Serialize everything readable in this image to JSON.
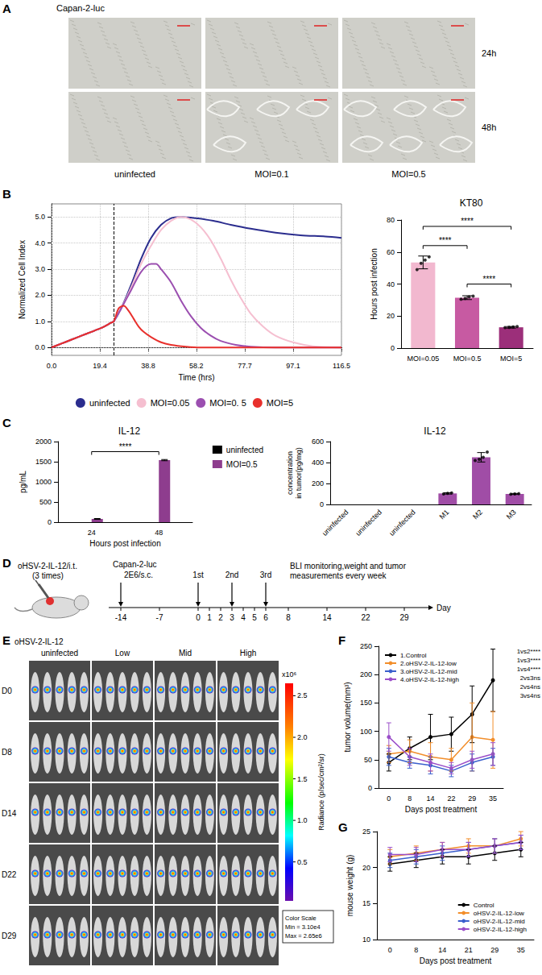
{
  "panel_letters": [
    "A",
    "B",
    "C",
    "D",
    "E",
    "F",
    "G"
  ],
  "microscopy": {
    "title": "Capan-2-luc",
    "rows": [
      "24h",
      "48h"
    ],
    "columns": [
      "uninfected",
      "MOI=0.1",
      "MOI=0.5"
    ]
  },
  "schematic": {
    "injection_label": "oHSV-2-IL-12/i.t.",
    "injection_note": "(3 times)",
    "cells": "Capan-2-luc",
    "cells_dose": "2E6/s.c.",
    "cells_day": -14,
    "doses": [
      {
        "day": 0,
        "label": "1st"
      },
      {
        "day": 3,
        "label": "2nd"
      },
      {
        "day": 6,
        "label": "3rd"
      }
    ],
    "monitoring": "BLI monitoring,weight and tumor measurements every week",
    "axis_label": "Day",
    "days": [
      -14,
      -7,
      0,
      1,
      2,
      3,
      4,
      5,
      6,
      8,
      14,
      22,
      29
    ]
  },
  "bli": {
    "group_label": "oHSV-2-IL-12",
    "columns": [
      "uninfected",
      "Low",
      "Mid",
      "High"
    ],
    "rows": [
      "D0",
      "D8",
      "D14",
      "D22",
      "D29"
    ],
    "colorbar": {
      "title": "Radiance (p/sec/cm²/sr)",
      "unit": "x10⁶",
      "range": [
        0.031,
        2.65
      ],
      "ticks": [
        0.5,
        {
          "value": 1,
          "label": "1.0"
        },
        1.5,
        {
          "value": 2,
          "label": "2.0"
        },
        2.5
      ]
    },
    "scale_box": [
      "Color Scale",
      "Min = 3.10e4",
      "Max = 2.65e6"
    ]
  },
  "chart_data": [
    {
      "type": "line",
      "x_label": "Time (hrs)",
      "y_label": "Normalized Cell Index",
      "xlim": [
        0,
        116.5
      ],
      "xticks": [
        {
          "value": 0,
          "label": "0.0"
        },
        19.4,
        38.8,
        58.2,
        77.7,
        97.1,
        116.5
      ],
      "ylim": [
        -0.3,
        5.5
      ],
      "yticks": [
        {
          "value": 0,
          "label": "0.0"
        },
        {
          "value": 1,
          "label": "1.0"
        },
        {
          "value": 2,
          "label": "2.0"
        },
        {
          "value": 3,
          "label": "3.0"
        },
        {
          "value": 4,
          "label": "4.0"
        },
        {
          "value": 5,
          "label": "5.0"
        }
      ],
      "grid": true,
      "legend": "bottom",
      "vline_x": 25,
      "series": [
        {
          "name": "uninfected",
          "color": "#2b2d8e",
          "x": [
            0,
            4,
            8,
            12,
            16,
            20,
            24,
            25,
            28,
            32,
            36,
            40,
            44,
            48,
            52,
            58,
            65,
            72,
            80,
            90,
            100,
            110,
            116.5
          ],
          "values": [
            0.0,
            0.15,
            0.3,
            0.45,
            0.6,
            0.75,
            0.95,
            1.0,
            1.5,
            2.4,
            3.4,
            4.2,
            4.7,
            4.95,
            5.0,
            4.95,
            4.85,
            4.7,
            4.55,
            4.4,
            4.3,
            4.25,
            4.2
          ]
        },
        {
          "name": "MOI=0.05",
          "color": "#f5bfd0",
          "x": [
            0,
            4,
            8,
            12,
            16,
            20,
            24,
            25,
            28,
            32,
            36,
            40,
            44,
            48,
            52,
            56,
            60,
            64,
            68,
            72,
            76,
            80,
            85,
            90,
            97,
            105,
            116.5
          ],
          "values": [
            0.0,
            0.15,
            0.3,
            0.45,
            0.6,
            0.75,
            0.95,
            1.0,
            1.5,
            2.3,
            3.2,
            3.9,
            4.5,
            4.85,
            5.0,
            4.9,
            4.6,
            4.1,
            3.4,
            2.6,
            1.9,
            1.3,
            0.8,
            0.45,
            0.2,
            0.05,
            0.0
          ]
        },
        {
          "name": "MOI=0. 5",
          "color": "#9b4fb0",
          "x": [
            0,
            4,
            8,
            12,
            16,
            20,
            24,
            25,
            28,
            32,
            36,
            40,
            42,
            44,
            48,
            52,
            56,
            60,
            64,
            68,
            74,
            80,
            90,
            116.5
          ],
          "values": [
            0.0,
            0.15,
            0.3,
            0.45,
            0.6,
            0.75,
            0.95,
            1.0,
            1.5,
            2.2,
            2.9,
            3.2,
            3.2,
            3.0,
            2.5,
            1.8,
            1.2,
            0.75,
            0.45,
            0.25,
            0.1,
            0.03,
            0.0,
            0.0
          ]
        },
        {
          "name": "MOI=5",
          "color": "#e8302c",
          "x": [
            0,
            4,
            8,
            12,
            16,
            20,
            24,
            25,
            27,
            29,
            31,
            33,
            35,
            37,
            40,
            44,
            48,
            54,
            60,
            80,
            116.5
          ],
          "values": [
            0.0,
            0.15,
            0.3,
            0.45,
            0.6,
            0.75,
            0.95,
            1.0,
            1.5,
            1.6,
            1.4,
            1.1,
            0.8,
            0.6,
            0.4,
            0.2,
            0.1,
            0.03,
            0.0,
            0.0,
            0.0
          ]
        }
      ]
    },
    {
      "type": "bar",
      "title": "KT80",
      "y_label": "Hours post infection",
      "categories": [
        "MOI=0.05",
        "MOI=0.5",
        "MOI=5"
      ],
      "values": [
        53.5,
        31.5,
        13
      ],
      "errors": [
        4,
        1.2,
        0.5
      ],
      "points": [
        [
          49,
          53,
          55,
          57
        ],
        [
          30.5,
          31,
          32,
          32.5
        ],
        [
          12.8,
          13,
          13.2,
          13.5
        ]
      ],
      "colors": [
        "#f2b8cf",
        "#c75aa2",
        "#9c2f7a"
      ],
      "ylim": [
        0,
        80
      ],
      "yticks": [
        0,
        20,
        40,
        60,
        80
      ],
      "grid": false,
      "significance": [
        {
          "between": [
            0,
            2
          ],
          "y": 76,
          "label": "****"
        },
        {
          "between": [
            0,
            1
          ],
          "y": 64,
          "label": "****"
        },
        {
          "between": [
            1,
            2
          ],
          "y": 40,
          "label": "****"
        }
      ]
    },
    {
      "type": "bar",
      "title": "IL-12",
      "x_label": "Hours post infection",
      "y_label": "pg/mL",
      "categories": [
        24,
        48
      ],
      "series": [
        {
          "name": "uninfected",
          "color": "#000000",
          "values": [
            0,
            0
          ],
          "errors": [
            0,
            0
          ]
        },
        {
          "name": "MOI=0.5",
          "color": "#8e3d8e",
          "values": [
            80,
            1540
          ],
          "errors": [
            10,
            15
          ]
        }
      ],
      "ylim": [
        0,
        2000
      ],
      "yticks": [
        0,
        500,
        1000,
        1500,
        2000
      ],
      "grid": false,
      "legend": "right",
      "significance": [
        {
          "between": [
            0,
            1
          ],
          "y": 1750,
          "label": "****"
        }
      ]
    },
    {
      "type": "bar",
      "title": "IL-12",
      "y_label": "concentration in tumor(pg/mg)",
      "categories": [
        "uninfected",
        "uninfected",
        "uninfected",
        "M1",
        "M2",
        "M3"
      ],
      "values": [
        0,
        0,
        0,
        105,
        450,
        100
      ],
      "errors": [
        0,
        0,
        0,
        6,
        45,
        5
      ],
      "points": [
        [],
        [],
        [],
        [
          100,
          105,
          110
        ],
        [
          420,
          430,
          450,
          500
        ],
        [
          97,
          100,
          103
        ]
      ],
      "color": "#a04da6",
      "ylim": [
        0,
        600
      ],
      "yticks": [
        0,
        200,
        400,
        600
      ],
      "grid": false
    },
    {
      "type": "line",
      "x_label": "Days post treatment",
      "y_label": "tumor volume(mm³)",
      "categories": [
        0,
        8,
        14,
        22,
        29,
        35
      ],
      "ylim": [
        0,
        250
      ],
      "yticks": [
        0,
        50,
        100,
        150,
        200,
        250
      ],
      "grid": false,
      "legend": "top-left",
      "series": [
        {
          "name": "1.Control",
          "color": "#000000",
          "values": [
            45,
            70,
            90,
            95,
            130,
            190
          ],
          "errors": [
            15,
            20,
            40,
            30,
            50,
            55
          ]
        },
        {
          "name": "2.oHSV-2-IL-12-low",
          "color": "#f28e2b",
          "values": [
            60,
            65,
            55,
            50,
            90,
            85
          ],
          "errors": [
            15,
            20,
            25,
            20,
            60,
            50
          ]
        },
        {
          "name": "3.oHSV-2-IL-12-mid",
          "color": "#3a5fcd",
          "values": [
            55,
            45,
            40,
            30,
            45,
            55
          ],
          "errors": [
            15,
            10,
            15,
            10,
            15,
            15
          ]
        },
        {
          "name": "4.oHSV-2-IL-12-high",
          "color": "#9b4fc9",
          "values": [
            90,
            55,
            45,
            35,
            50,
            60
          ],
          "errors": [
            25,
            15,
            15,
            10,
            15,
            20
          ]
        }
      ],
      "annotations": [
        "1vs2****",
        "1vs3****",
        "1vs4****",
        "2vs3ns",
        "2vs4ns",
        "3vs4ns"
      ]
    },
    {
      "type": "line",
      "x_label": "Days post treatment",
      "y_label": "mouse weight (g)",
      "categories": [
        0,
        8,
        14,
        21,
        29,
        35
      ],
      "ylim": [
        10,
        25
      ],
      "yticks": [
        10,
        15,
        20,
        25
      ],
      "grid": false,
      "legend": "bottom-right",
      "series": [
        {
          "name": "Control",
          "color": "#000000",
          "values": [
            20.5,
            21,
            21.5,
            21.5,
            22,
            22.5
          ],
          "errors": [
            1,
            1,
            1,
            1,
            1,
            1
          ]
        },
        {
          "name": "oHSV-2-IL-12-low",
          "color": "#f28e2b",
          "values": [
            21.5,
            22,
            22.5,
            23,
            23,
            24
          ],
          "errors": [
            1,
            1,
            1,
            1,
            1,
            1
          ]
        },
        {
          "name": "oHSV-2-IL-12-mid",
          "color": "#3a5fcd",
          "values": [
            21,
            21.5,
            22,
            22.5,
            23,
            23.5
          ],
          "errors": [
            1,
            1,
            1,
            1,
            1,
            1
          ]
        },
        {
          "name": "oHSV-2-IL-12-high",
          "color": "#9b4fc9",
          "values": [
            21.8,
            21.8,
            22.5,
            22.5,
            23,
            23.5
          ],
          "errors": [
            1,
            1,
            1,
            1,
            1,
            1
          ]
        }
      ]
    }
  ]
}
